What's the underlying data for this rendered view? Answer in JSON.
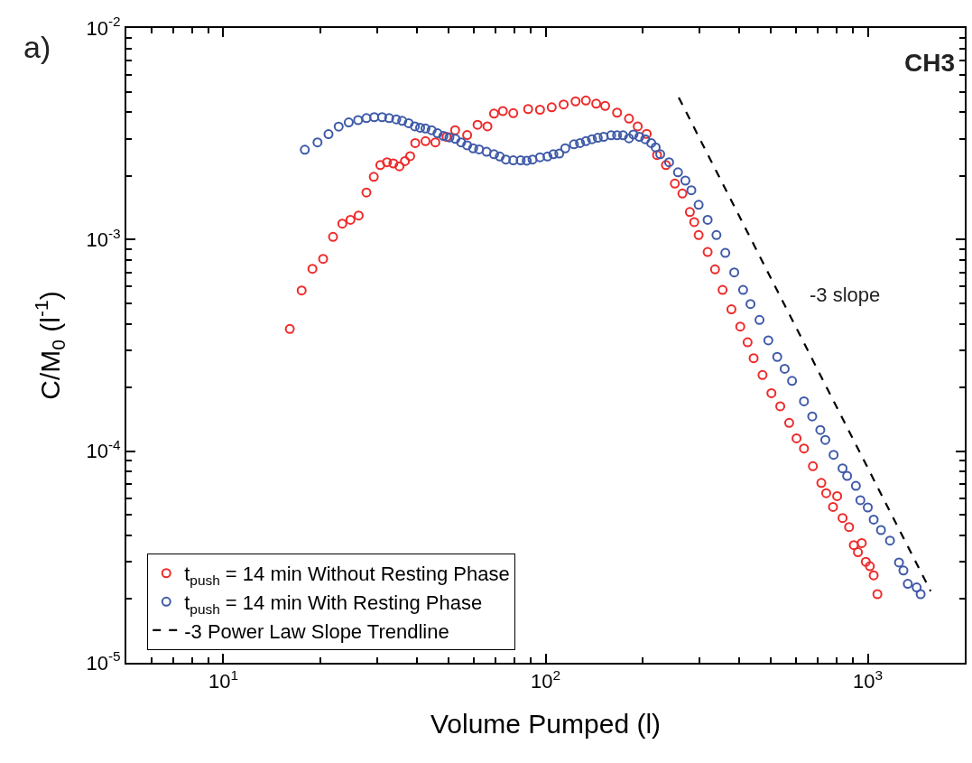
{
  "chart_data": {
    "type": "scatter",
    "xlabel": "Volume Pumped (l)",
    "ylabel": "C/M$_{0}$ (l$^{-1}$)",
    "annotations": [
      "a)",
      "CH3",
      "-3 slope"
    ],
    "log": "xy",
    "legend": "bottom left",
    "marker": "circle",
    "xlim": [
      5,
      2000
    ],
    "ylim": [
      1e-05,
      0.01
    ],
    "xticks": [
      {
        "value": 10,
        "label": "10$^{1}$"
      },
      {
        "value": 100,
        "label": "10$^{2}$"
      },
      {
        "value": 1000,
        "label": "10$^{3}$"
      }
    ],
    "yticks": [
      {
        "value": 1e-05,
        "label": "10$^{-5}$"
      },
      {
        "value": 0.0001,
        "label": "10$^{-4}$"
      },
      {
        "value": 0.001,
        "label": "10$^{-3}$"
      },
      {
        "value": 0.01,
        "label": "10$^{-2}$"
      }
    ],
    "series": [
      {
        "name": "t$_{push}$ = 14 min Without Resting Phase",
        "color": "#ee2a2a",
        "x": [
          16.08,
          17.5,
          18.9,
          20.4,
          21.9,
          23.4,
          24.8,
          26.3,
          27.8,
          29.3,
          30.7,
          32.2,
          33.7,
          35.2,
          36.6,
          38.0,
          39.4,
          42.4,
          45.5,
          49.3,
          52.4,
          57.1,
          61.5,
          66.0,
          69.2,
          73.7,
          79.4,
          88.3,
          96.1,
          104.5,
          113.8,
          123.9,
          133.4,
          143.6,
          153.1,
          166.7,
          181.5,
          193.2,
          206.0,
          221.8,
          236.4,
          251.9,
          265.8,
          280.5,
          289.3,
          298.6,
          318.4,
          335.7,
          354.3,
          377.4,
          402.0,
          423.6,
          442.3,
          471.3,
          502.3,
          535.0,
          570.2,
          601.0,
          633.9,
          675.5,
          717.5,
          743.0,
          803.5,
          780.0,
          835.0,
          875.0,
          905.0,
          958.0,
          932.0,
          986.0,
          1015,
          1043,
          1071
        ],
        "values": [
          0.000378,
          0.000575,
          0.000728,
          0.000811,
          0.00103,
          0.00119,
          0.00124,
          0.0013,
          0.00167,
          0.00198,
          0.00225,
          0.00232,
          0.00229,
          0.00222,
          0.00235,
          0.00248,
          0.00286,
          0.00292,
          0.00288,
          0.00306,
          0.00329,
          0.00312,
          0.00349,
          0.00343,
          0.00394,
          0.00405,
          0.00396,
          0.00414,
          0.00411,
          0.00422,
          0.00435,
          0.0045,
          0.00454,
          0.00439,
          0.00428,
          0.00398,
          0.00373,
          0.00343,
          0.00316,
          0.00251,
          0.00225,
          0.00184,
          0.00165,
          0.00135,
          0.00121,
          0.00105,
          0.000874,
          0.000723,
          0.000578,
          0.000468,
          0.000388,
          0.000327,
          0.000275,
          0.000229,
          0.000188,
          0.000163,
          0.000136,
          0.000115,
          0.000103,
          8.49e-05,
          7.08e-05,
          6.33e-05,
          6.13e-05,
          5.45e-05,
          4.83e-05,
          4.38e-05,
          3.6e-05,
          3.68e-05,
          3.33e-05,
          3e-05,
          2.86e-05,
          2.59e-05,
          2.11e-05
        ]
      },
      {
        "name": "t$_{push}$ = 14 min With Resting Phase",
        "color": "#3f5aa8",
        "x": [
          17.9,
          19.6,
          21.2,
          22.8,
          24.5,
          26.2,
          27.8,
          29.4,
          31.1,
          32.7,
          34.4,
          35.9,
          37.6,
          39.3,
          40.8,
          42.4,
          44.3,
          46.2,
          48.2,
          50.3,
          52.5,
          54.7,
          57.1,
          59.6,
          62.2,
          65.6,
          69.2,
          72.1,
          75.3,
          79.4,
          83.7,
          87.4,
          91.1,
          96.1,
          101.4,
          105.7,
          110.3,
          115.1,
          122.5,
          127.9,
          133.4,
          139.3,
          145.2,
          151.5,
          159.8,
          166.7,
          174.0,
          181.5,
          187.4,
          195.5,
          203.9,
          212.8,
          219.6,
          226.9,
          241.8,
          257.6,
          271.6,
          283.4,
          298.6,
          318.4,
          339.1,
          361.3,
          385.1,
          410.3,
          432.5,
          461.3,
          491.3,
          523.6,
          552.1,
          582.1,
          633.9,
          672.4,
          712.4,
          738.2,
          783.4,
          835.1,
          862.7,
          918.6,
          948.4,
          1000,
          1043,
          1099,
          1172,
          1250,
          1290,
          1331,
          1418,
          1459
        ],
        "values": [
          0.00266,
          0.00288,
          0.00315,
          0.00342,
          0.00358,
          0.00367,
          0.00375,
          0.00379,
          0.00379,
          0.00375,
          0.0037,
          0.00364,
          0.00355,
          0.00343,
          0.00338,
          0.00335,
          0.00329,
          0.00318,
          0.00309,
          0.00304,
          0.00299,
          0.00288,
          0.00279,
          0.0027,
          0.00267,
          0.0026,
          0.00253,
          0.00247,
          0.00239,
          0.00237,
          0.00237,
          0.00236,
          0.00239,
          0.00245,
          0.00247,
          0.00253,
          0.00255,
          0.0027,
          0.00282,
          0.00286,
          0.00292,
          0.00298,
          0.00303,
          0.00306,
          0.00311,
          0.00311,
          0.00311,
          0.00301,
          0.00314,
          0.00306,
          0.00298,
          0.00286,
          0.00273,
          0.00253,
          0.00232,
          0.00208,
          0.0019,
          0.00171,
          0.00146,
          0.00124,
          0.00105,
          0.000865,
          0.0007,
          0.000578,
          0.000496,
          0.000417,
          0.000334,
          0.000279,
          0.000245,
          0.000215,
          0.000172,
          0.000146,
          0.000126,
          0.000113,
          9.61e-05,
          8.3e-05,
          7.64e-05,
          6.86e-05,
          5.87e-05,
          5.42e-05,
          4.75e-05,
          4.24e-05,
          3.78e-05,
          2.98e-05,
          2.73e-05,
          2.36e-05,
          2.27e-05,
          2.11e-05
        ]
      },
      {
        "name": "-3 Power Law Slope Trendline",
        "color": "#000000",
        "type": "line",
        "line_style": "dashed",
        "marker": "none",
        "x": [
          259,
          1567
        ],
        "values": [
          0.00469,
          2.18e-05
        ]
      }
    ]
  }
}
